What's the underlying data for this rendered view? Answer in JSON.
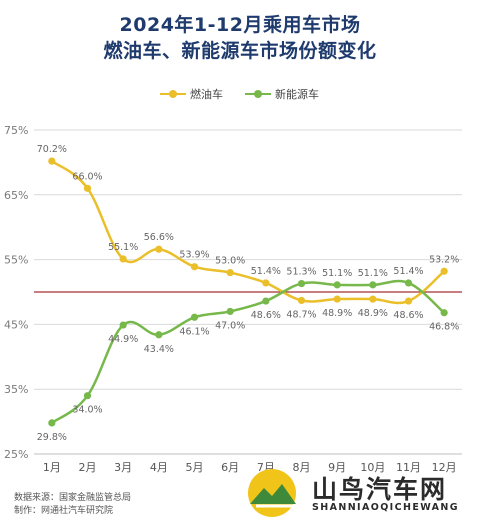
{
  "title_line1": "2024年1-12月乘用车市场",
  "title_line2": "燃油车、新能源车市场份额变化",
  "footer": {
    "source": "数据来源：国家金融监管总局",
    "made_by": "制作：网通社汽车研究院"
  },
  "logo": {
    "name": "山鸟汽车网",
    "pinyin": "SHANNIAOQICHEWANG",
    "icon": "mountain-bird-logo-icon"
  },
  "colors": {
    "fuel": "#eabf2a",
    "nev": "#77b84a",
    "reference_line": "#a83232",
    "title": "#1f3b6e"
  },
  "chart_data": {
    "type": "line",
    "categories": [
      "1月",
      "2月",
      "3月",
      "4月",
      "5月",
      "6月",
      "7月",
      "8月",
      "9月",
      "10月",
      "11月",
      "12月"
    ],
    "series": [
      {
        "name": "燃油车",
        "values": [
          70.2,
          66.0,
          55.1,
          56.6,
          53.9,
          53.0,
          51.4,
          48.7,
          48.9,
          48.9,
          48.6,
          53.2
        ],
        "labels": [
          "70.2%",
          "66.0%",
          "55.1%",
          "56.6%",
          "53.9%",
          "53.0%",
          "51.4%",
          "48.7%",
          "48.9%",
          "48.9%",
          "48.6%",
          "53.2%"
        ]
      },
      {
        "name": "新能源车",
        "values": [
          29.8,
          34.0,
          44.9,
          43.4,
          46.1,
          47.0,
          48.6,
          51.3,
          51.1,
          51.1,
          51.4,
          46.8
        ],
        "labels": [
          "29.8%",
          "34.0%",
          "44.9%",
          "43.4%",
          "46.1%",
          "47.0%",
          "48.6%",
          "51.3%",
          "51.1%",
          "51.1%",
          "51.4%",
          "46.8%"
        ]
      }
    ],
    "y_ticks": [
      25,
      35,
      45,
      55,
      65,
      75
    ],
    "y_tick_labels": [
      "25%",
      "35%",
      "45%",
      "55%",
      "65%",
      "75%"
    ],
    "ylim": [
      25,
      75
    ],
    "reference_value": 50,
    "grid": true,
    "legend_position": "top-center"
  }
}
